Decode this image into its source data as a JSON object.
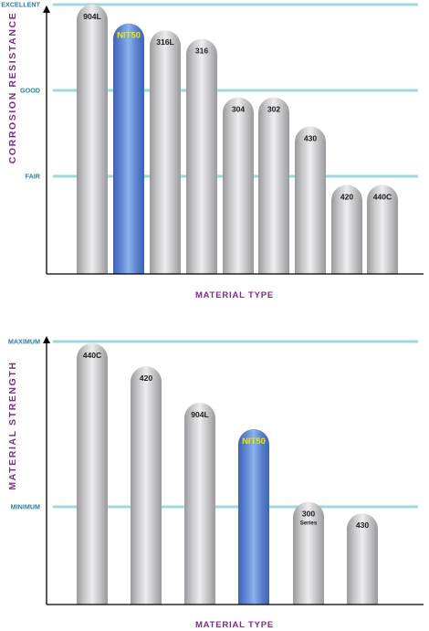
{
  "colors": {
    "guide": "#9fd8dc",
    "guide_text": "#2b7f9b",
    "axis": "#000000",
    "title": "#7b2c8a",
    "bar_label": "#1a1a1a",
    "highlight_label": "#f2e600",
    "gray_bar": [
      "#9a9a9e",
      "#c9c9cc",
      "#ededee",
      "#c4c4c7",
      "#9a9a9e"
    ],
    "blue_bar": [
      "#3f63b2",
      "#5f87d4",
      "#8cb2ec",
      "#5a82cf",
      "#3f63b2"
    ]
  },
  "chart_data": [
    {
      "type": "bar",
      "ylabel": "CORROSION RESISTANCE",
      "xlabel": "MATERIAL TYPE",
      "levels": [
        {
          "label": "EXCELLENT",
          "value": 3
        },
        {
          "label": "GOOD",
          "value": 2
        },
        {
          "label": "FAIR",
          "value": 1
        }
      ],
      "ylim": [
        0,
        3
      ],
      "categories": [
        "904L",
        "NIT50",
        "316L",
        "316",
        "304",
        "302",
        "430",
        "420",
        "440C"
      ],
      "values": [
        3.0,
        2.78,
        2.7,
        2.6,
        1.92,
        1.92,
        1.58,
        0.9,
        0.9
      ],
      "highlight": "NIT50"
    },
    {
      "type": "bar",
      "ylabel": "MATERIAL STRENGTH",
      "xlabel": "MATERIAL TYPE",
      "levels": [
        {
          "label": "MAXIMUM",
          "value": 1
        },
        {
          "label": "MINIMUM",
          "value": 0
        }
      ],
      "ylim": [
        -0.59,
        1
      ],
      "categories": [
        "440C",
        "420",
        "904L",
        "NIT50",
        "300 Series",
        "430"
      ],
      "values": [
        0.99,
        0.85,
        0.63,
        0.47,
        0.03,
        -0.04
      ],
      "highlight": "NIT50"
    }
  ]
}
